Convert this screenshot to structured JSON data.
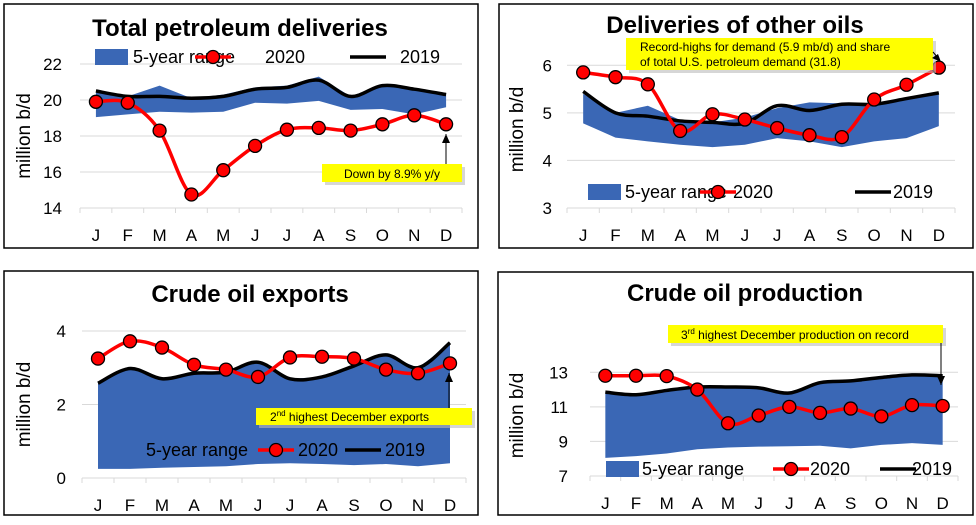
{
  "colors": {
    "range": "#3a67b5",
    "y2020": "#ff0000",
    "marker_fill": "#ff0000",
    "y2019": "#000000",
    "note_bg": "#ffff00",
    "grid": "#d9d9d9"
  },
  "chart_data": [
    {
      "type": "line",
      "title": "Total petroleum deliveries",
      "ylabel": "million b/d",
      "ylim": [
        14,
        22
      ],
      "yticks": [
        "14",
        "16",
        "18",
        "20",
        "22"
      ],
      "categories": [
        "J",
        "F",
        "M",
        "A",
        "M",
        "J",
        "J",
        "A",
        "S",
        "O",
        "N",
        "D"
      ],
      "legend": {
        "range": "5-year range",
        "y2020": "2020",
        "y2019": "2019"
      },
      "range_low": [
        19.05,
        19.2,
        19.35,
        19.3,
        19.35,
        19.85,
        19.8,
        19.95,
        19.45,
        19.5,
        19.2,
        19.6
      ],
      "range_high": [
        20.4,
        20.2,
        20.8,
        20.1,
        20.3,
        20.7,
        20.8,
        21.3,
        20.2,
        20.85,
        20.6,
        20.3
      ],
      "series": [
        {
          "name": "2020",
          "values": [
            19.9,
            19.85,
            18.3,
            14.75,
            16.1,
            17.45,
            18.35,
            18.45,
            18.3,
            18.65,
            19.15,
            18.65
          ]
        },
        {
          "name": "2019",
          "values": [
            20.5,
            20.2,
            20.2,
            20.1,
            20.2,
            20.6,
            20.7,
            21.1,
            20.2,
            20.8,
            20.6,
            20.3
          ]
        }
      ],
      "annotation": {
        "lines": [
          "Down by 8.9% y/y"
        ]
      }
    },
    {
      "type": "line",
      "title": "Deliveries of other oils",
      "ylabel": "million b/d",
      "ylim": [
        3,
        6.3
      ],
      "yticks": [
        "3",
        "4",
        "5",
        "6"
      ],
      "categories": [
        "J",
        "F",
        "M",
        "A",
        "M",
        "J",
        "J",
        "A",
        "S",
        "O",
        "N",
        "D"
      ],
      "legend": {
        "range": "5-year range",
        "y2020": "2020",
        "y2019": "2019"
      },
      "range_low": [
        4.78,
        4.48,
        4.4,
        4.33,
        4.28,
        4.33,
        4.47,
        4.4,
        4.28,
        4.4,
        4.47,
        4.72
      ],
      "range_high": [
        5.4,
        5.0,
        5.15,
        4.85,
        4.8,
        4.9,
        5.1,
        5.22,
        5.2,
        5.2,
        5.3,
        5.42
      ],
      "series": [
        {
          "name": "2020",
          "values": [
            5.85,
            5.75,
            5.6,
            4.62,
            4.97,
            4.86,
            4.68,
            4.53,
            4.49,
            5.28,
            5.59,
            5.95
          ]
        },
        {
          "name": "2019",
          "values": [
            5.45,
            5.0,
            4.93,
            4.83,
            4.8,
            4.78,
            5.15,
            5.05,
            5.18,
            5.18,
            5.3,
            5.42
          ]
        }
      ],
      "annotation": {
        "lines": [
          "Record-highs for demand (5.9 mb/d) and share",
          "of total U.S. petroleum demand (31.8)"
        ]
      }
    },
    {
      "type": "line",
      "title": "Crude oil exports",
      "ylabel": "million b/d",
      "ylim": [
        0,
        4
      ],
      "yticks": [
        "0",
        "2",
        "4"
      ],
      "categories": [
        "J",
        "F",
        "M",
        "A",
        "M",
        "J",
        "J",
        "A",
        "S",
        "O",
        "N",
        "D"
      ],
      "legend": {
        "range": "5-year range",
        "y2020": "2020",
        "y2019": "2019"
      },
      "range_low": [
        0.25,
        0.25,
        0.28,
        0.3,
        0.32,
        0.38,
        0.4,
        0.38,
        0.35,
        0.38,
        0.32,
        0.4
      ],
      "range_high": [
        2.6,
        3.0,
        2.7,
        2.85,
        2.9,
        3.15,
        2.7,
        2.75,
        3.05,
        3.35,
        3.0,
        3.65
      ],
      "series": [
        {
          "name": "2020",
          "values": [
            3.25,
            3.72,
            3.55,
            3.08,
            2.95,
            2.75,
            3.28,
            3.3,
            3.25,
            2.95,
            2.85,
            3.12
          ]
        },
        {
          "name": "2019",
          "values": [
            2.58,
            2.98,
            2.7,
            2.85,
            2.88,
            3.15,
            2.7,
            2.75,
            3.05,
            3.35,
            3.0,
            3.68
          ]
        }
      ],
      "annotation": {
        "ordinal": "2",
        "suffix": "nd",
        "rest": " highest December exports"
      }
    },
    {
      "type": "line",
      "title": "Crude oil production",
      "ylabel": "million b/d",
      "ylim": [
        7,
        14
      ],
      "yticks": [
        "7",
        "9",
        "11",
        "13"
      ],
      "categories": [
        "J",
        "F",
        "M",
        "A",
        "M",
        "J",
        "J",
        "A",
        "S",
        "O",
        "N",
        "D"
      ],
      "legend": {
        "range": "5-year range",
        "y2020": "2020",
        "y2019": "2019"
      },
      "range_low": [
        8.05,
        8.15,
        8.3,
        8.55,
        8.65,
        8.7,
        8.72,
        8.75,
        8.6,
        8.8,
        8.9,
        8.8
      ],
      "range_high": [
        11.85,
        11.7,
        11.95,
        12.15,
        12.15,
        12.1,
        11.8,
        12.4,
        12.5,
        12.7,
        12.85,
        12.8
      ],
      "series": [
        {
          "name": "2020",
          "values": [
            12.8,
            12.8,
            12.78,
            12.0,
            10.05,
            10.5,
            11.0,
            10.65,
            10.9,
            10.45,
            11.1,
            11.05
          ]
        },
        {
          "name": "2019",
          "values": [
            11.85,
            11.7,
            11.95,
            12.15,
            12.15,
            12.1,
            11.8,
            12.4,
            12.5,
            12.7,
            12.85,
            12.8
          ]
        }
      ],
      "annotation": {
        "ordinal": "3",
        "suffix": "rd",
        "rest": " highest December production on record"
      }
    }
  ]
}
